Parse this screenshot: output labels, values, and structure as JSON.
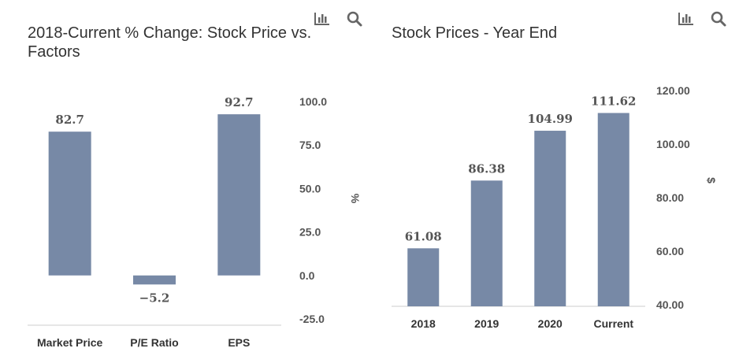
{
  "toolbar": {
    "chart_icon": "bar-chart-icon",
    "search_icon": "search-icon"
  },
  "colors": {
    "bar": "#7789a6",
    "axis_line": "#cccccc",
    "text": "#555555"
  },
  "chart_data": [
    {
      "type": "bar",
      "title": "2018-Current % Change: Stock Price vs. Factors",
      "title_lines": [
        "2018-Current % Change: Stock Price vs.",
        "Factors"
      ],
      "categories": [
        "Market Price",
        "P/E Ratio",
        "EPS"
      ],
      "values": [
        82.7,
        -5.2,
        92.7
      ],
      "value_labels": [
        "82.7",
        "−5.2",
        "92.7"
      ],
      "ylabel": "%",
      "ylim": [
        -25,
        100
      ],
      "yticks": [
        100,
        75,
        50,
        25,
        0,
        -25
      ],
      "ytick_labels": [
        "100.0",
        "75.0",
        "50.0",
        "25.0",
        "0.0",
        "-25.0"
      ],
      "axis_position": "right",
      "grid": false
    },
    {
      "type": "bar",
      "title": "Stock Prices - Year End",
      "title_lines": [
        "Stock Prices - Year End"
      ],
      "categories": [
        "2018",
        "2019",
        "2020",
        "Current"
      ],
      "values": [
        61.08,
        86.38,
        104.99,
        111.62
      ],
      "value_labels": [
        "61.08",
        "86.38",
        "104.99",
        "111.62"
      ],
      "ylabel": "$",
      "ylim": [
        40,
        120
      ],
      "yticks": [
        120,
        100,
        80,
        60,
        40
      ],
      "ytick_labels": [
        "120.00",
        "100.00",
        "80.00",
        "60.00",
        "40.00"
      ],
      "axis_position": "right",
      "grid": false
    }
  ]
}
